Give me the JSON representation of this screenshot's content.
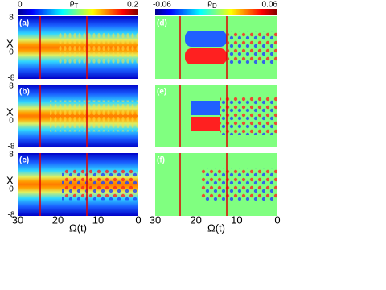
{
  "colorbars": [
    {
      "title": "ρ",
      "subscript": "T",
      "min": 0,
      "max": 0.2
    },
    {
      "title": "ρ",
      "subscript": "D",
      "min": -0.06,
      "max": 0.06
    }
  ],
  "panels": [
    {
      "label": "(a)"
    },
    {
      "label": "(b)"
    },
    {
      "label": "(c)"
    },
    {
      "label": "(d)"
    },
    {
      "label": "(e)"
    },
    {
      "label": "(f)"
    }
  ],
  "y_axis": {
    "label": "X",
    "ticks": [
      8,
      0,
      -8
    ]
  },
  "x_axis": {
    "label": "Ω(t)",
    "ticks": [
      30,
      20,
      10,
      0
    ]
  }
}
